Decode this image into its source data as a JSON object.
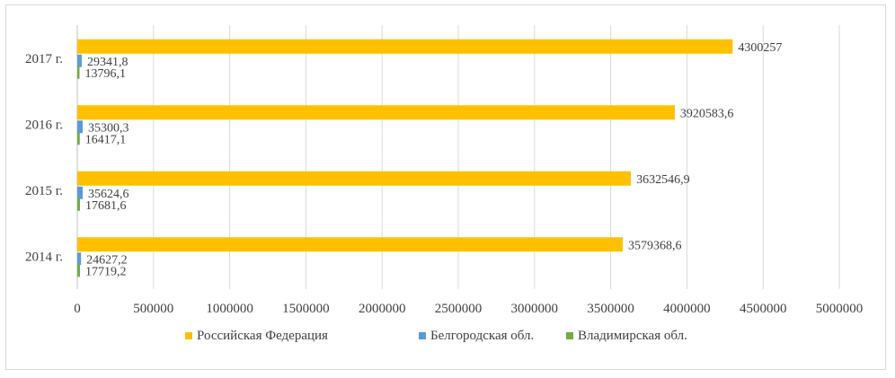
{
  "chart_data": {
    "type": "bar",
    "orientation": "horizontal",
    "categories": [
      "2014 г.",
      "2015 г.",
      "2016 г.",
      "2017 г."
    ],
    "series": [
      {
        "name": "Российская Федерация",
        "color": "#FFC000",
        "values": [
          3579368.6,
          3632546.9,
          3920583.6,
          4300257
        ],
        "labels": [
          "3579368,6",
          "3632546,9",
          "3920583,6",
          "4300257"
        ]
      },
      {
        "name": "Белгородская обл.",
        "color": "#5B9BD5",
        "values": [
          24627.2,
          35624.6,
          35300.3,
          29341.8
        ],
        "labels": [
          "24627,2",
          "35624,6",
          "35300,3",
          "29341,8"
        ]
      },
      {
        "name": "Владимирская обл.",
        "color": "#70AD47",
        "values": [
          17719.2,
          17681.6,
          16417.1,
          13796.1
        ],
        "labels": [
          "17719,2",
          "17681,6",
          "16417,1",
          "13796,1"
        ]
      }
    ],
    "xlim": [
      0,
      5000000
    ],
    "xticks": [
      0,
      500000,
      1000000,
      1500000,
      2000000,
      2500000,
      3000000,
      3500000,
      4000000,
      4500000,
      5000000
    ],
    "xtick_labels": [
      "0",
      "500000",
      "1000000",
      "1500000",
      "2000000",
      "2500000",
      "3000000",
      "3500000",
      "4000000",
      "4500000",
      "5000000"
    ],
    "grid": true,
    "legend_position": "bottom",
    "title": "",
    "xlabel": "",
    "ylabel": ""
  }
}
